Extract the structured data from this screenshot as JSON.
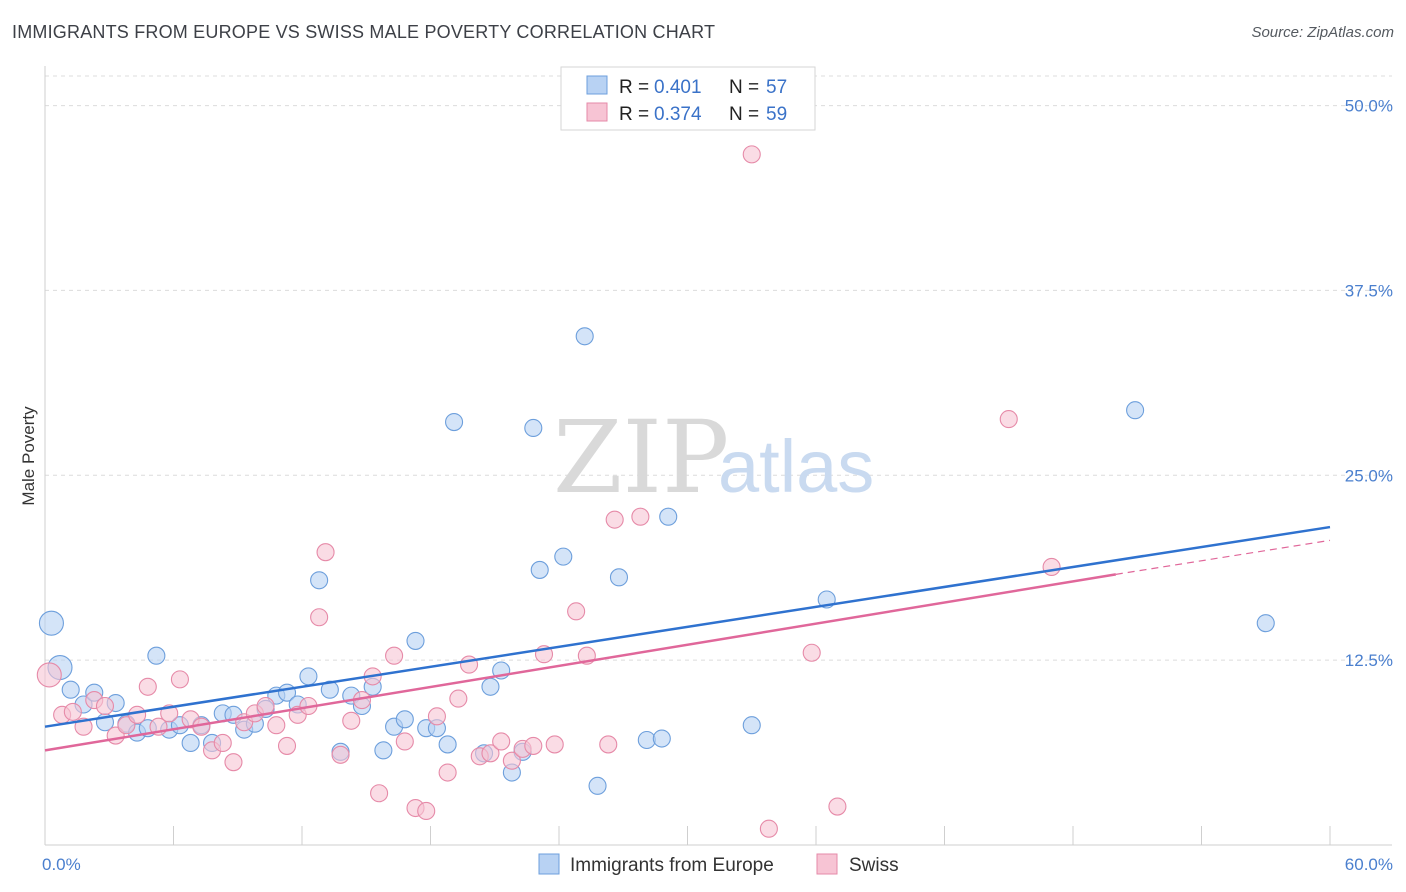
{
  "title": "IMMIGRANTS FROM EUROPE VS SWISS MALE POVERTY CORRELATION CHART",
  "source": "Source: ZipAtlas.com",
  "colors": {
    "blue_fill": "#b8d2f3",
    "blue_stroke": "#6d9fdc",
    "blue_line": "#2f72cf",
    "pink_fill": "#f7c4d4",
    "pink_stroke": "#e68aa8",
    "pink_line": "#e0679a",
    "grid": "#dcdcdc",
    "tick_text": "#4a7fce"
  },
  "legend": {
    "rows": [
      {
        "r_label": "R =",
        "r_value": "0.401",
        "n_label": "N =",
        "n_value": "57"
      },
      {
        "r_label": "R =",
        "r_value": "0.374",
        "n_label": "N =",
        "n_value": "59"
      }
    ]
  },
  "watermark": {
    "zip": "ZIP",
    "atlas": "atlas"
  },
  "chart_data": {
    "type": "scatter",
    "xlabel": "",
    "ylabel": "Male Poverty",
    "xlim": [
      0,
      60
    ],
    "ylim": [
      0,
      52
    ],
    "x_tick_labels": [
      {
        "value": 0,
        "label": "0.0%"
      },
      {
        "value": 60,
        "label": "60.0%"
      }
    ],
    "y_tick_labels": [
      {
        "value": 12.5,
        "label": "12.5%"
      },
      {
        "value": 25,
        "label": "25.0%"
      },
      {
        "value": 37.5,
        "label": "37.5%"
      },
      {
        "value": 50,
        "label": "50.0%"
      }
    ],
    "grid": true,
    "legend_position": "bottom-center",
    "series": [
      {
        "name": "Immigrants from Europe",
        "trend": {
          "x0": 0,
          "y0": 8.0,
          "x1": 60,
          "y1": 21.5
        },
        "points": [
          [
            0.3,
            15.0
          ],
          [
            0.7,
            12.0
          ],
          [
            1.2,
            10.5
          ],
          [
            1.8,
            9.5
          ],
          [
            2.3,
            10.3
          ],
          [
            2.8,
            8.3
          ],
          [
            3.3,
            9.6
          ],
          [
            3.8,
            8.2
          ],
          [
            4.3,
            7.6
          ],
          [
            4.8,
            7.9
          ],
          [
            5.2,
            12.8
          ],
          [
            5.8,
            7.8
          ],
          [
            6.3,
            8.1
          ],
          [
            6.8,
            6.9
          ],
          [
            7.3,
            8.1
          ],
          [
            7.8,
            6.9
          ],
          [
            8.3,
            8.9
          ],
          [
            8.8,
            8.8
          ],
          [
            9.3,
            7.8
          ],
          [
            9.8,
            8.2
          ],
          [
            10.3,
            9.2
          ],
          [
            10.8,
            10.1
          ],
          [
            11.3,
            10.3
          ],
          [
            11.8,
            9.5
          ],
          [
            12.3,
            11.4
          ],
          [
            12.8,
            17.9
          ],
          [
            13.3,
            10.5
          ],
          [
            13.8,
            6.3
          ],
          [
            14.3,
            10.1
          ],
          [
            14.8,
            9.4
          ],
          [
            15.3,
            10.7
          ],
          [
            15.8,
            6.4
          ],
          [
            16.3,
            8.0
          ],
          [
            16.8,
            8.5
          ],
          [
            17.3,
            13.8
          ],
          [
            17.8,
            7.9
          ],
          [
            18.3,
            7.9
          ],
          [
            18.8,
            6.8
          ],
          [
            19.1,
            28.6
          ],
          [
            20.5,
            6.2
          ],
          [
            20.8,
            10.7
          ],
          [
            21.3,
            11.8
          ],
          [
            21.8,
            4.9
          ],
          [
            22.3,
            6.3
          ],
          [
            22.8,
            28.2
          ],
          [
            23.1,
            18.6
          ],
          [
            24.2,
            19.5
          ],
          [
            25.2,
            34.4
          ],
          [
            25.8,
            4.0
          ],
          [
            26.8,
            18.1
          ],
          [
            28.1,
            7.1
          ],
          [
            28.8,
            7.2
          ],
          [
            29.1,
            22.2
          ],
          [
            33.0,
            8.1
          ],
          [
            36.5,
            16.6
          ],
          [
            50.9,
            29.4
          ],
          [
            57.0,
            15.0
          ]
        ]
      },
      {
        "name": "Swiss",
        "trend": {
          "x0": 0,
          "y0": 6.4,
          "x1": 50,
          "y1": 18.3
        },
        "trend_dashed": {
          "x0": 50,
          "y0": 18.3,
          "x1": 60,
          "y1": 20.6
        },
        "points": [
          [
            0.2,
            11.5
          ],
          [
            0.8,
            8.8
          ],
          [
            1.3,
            9.0
          ],
          [
            1.8,
            8.0
          ],
          [
            2.3,
            9.8
          ],
          [
            2.8,
            9.4
          ],
          [
            3.3,
            7.4
          ],
          [
            3.8,
            8.1
          ],
          [
            4.3,
            8.8
          ],
          [
            4.8,
            10.7
          ],
          [
            5.3,
            8.0
          ],
          [
            5.8,
            8.9
          ],
          [
            6.3,
            11.2
          ],
          [
            6.8,
            8.5
          ],
          [
            7.3,
            8.0
          ],
          [
            7.8,
            6.4
          ],
          [
            8.3,
            6.9
          ],
          [
            8.8,
            5.6
          ],
          [
            9.3,
            8.3
          ],
          [
            9.8,
            8.9
          ],
          [
            10.3,
            9.4
          ],
          [
            10.8,
            8.1
          ],
          [
            11.3,
            6.7
          ],
          [
            11.8,
            8.8
          ],
          [
            12.3,
            9.4
          ],
          [
            12.8,
            15.4
          ],
          [
            13.1,
            19.8
          ],
          [
            13.8,
            6.1
          ],
          [
            14.3,
            8.4
          ],
          [
            14.8,
            9.8
          ],
          [
            15.3,
            11.4
          ],
          [
            15.6,
            3.5
          ],
          [
            16.3,
            12.8
          ],
          [
            16.8,
            7.0
          ],
          [
            17.3,
            2.5
          ],
          [
            17.8,
            2.3
          ],
          [
            18.3,
            8.7
          ],
          [
            18.8,
            4.9
          ],
          [
            19.3,
            9.9
          ],
          [
            19.8,
            12.2
          ],
          [
            20.3,
            6.0
          ],
          [
            20.8,
            6.2
          ],
          [
            21.3,
            7.0
          ],
          [
            21.8,
            5.7
          ],
          [
            22.3,
            6.5
          ],
          [
            22.8,
            6.7
          ],
          [
            23.3,
            12.9
          ],
          [
            23.8,
            6.8
          ],
          [
            24.8,
            15.8
          ],
          [
            25.3,
            12.8
          ],
          [
            26.3,
            6.8
          ],
          [
            26.6,
            22.0
          ],
          [
            27.8,
            22.2
          ],
          [
            33.0,
            46.7
          ],
          [
            33.8,
            1.1
          ],
          [
            35.8,
            13.0
          ],
          [
            37.0,
            2.6
          ],
          [
            45.0,
            28.8
          ],
          [
            47.0,
            18.8
          ]
        ]
      }
    ]
  }
}
